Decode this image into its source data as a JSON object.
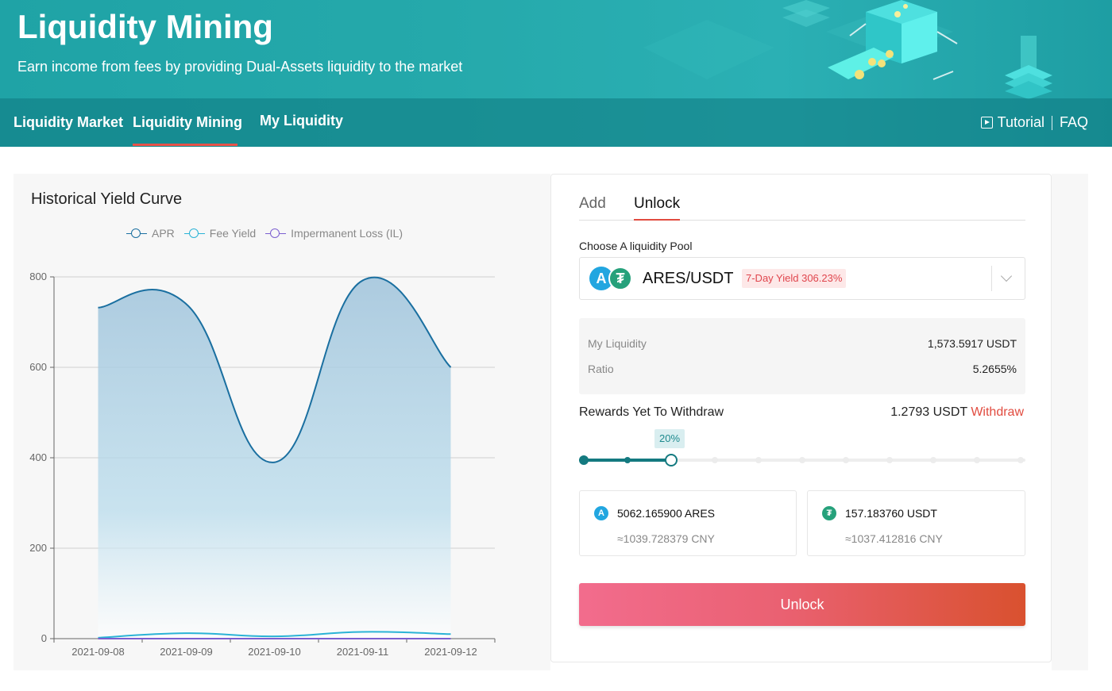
{
  "banner": {
    "title": "Liquidity Mining",
    "subtitle": "Earn income from fees by providing Dual-Assets liquidity to the market"
  },
  "nav": {
    "items": [
      {
        "label": "Liquidity Market",
        "active": false
      },
      {
        "label": "Liquidity Mining",
        "active": true
      },
      {
        "label": "My Liquidity",
        "active": false
      }
    ],
    "tutorial_label": "Tutorial",
    "faq_label": "FAQ",
    "tutorial_icon": "play-video-icon"
  },
  "chart": {
    "title": "Historical Yield Curve",
    "legend": [
      "APR",
      "Fee Yield",
      "Impermanent Loss (IL)"
    ]
  },
  "chart_data": {
    "type": "line",
    "title": "Historical Yield Curve",
    "x": [
      "2021-09-08",
      "2021-09-09",
      "2021-09-10",
      "2021-09-11",
      "2021-09-12"
    ],
    "ylim": [
      0,
      800
    ],
    "yticks": [
      0,
      200,
      400,
      600,
      800
    ],
    "grid": true,
    "legend_position": "top",
    "series": [
      {
        "name": "APR",
        "color": "#1a6fa0",
        "area": true,
        "values": [
          732,
          740,
          390,
          792,
          600
        ]
      },
      {
        "name": "Fee Yield",
        "color": "#2bb3d6",
        "area": false,
        "values": [
          2,
          12,
          5,
          15,
          10
        ]
      },
      {
        "name": "Impermanent Loss (IL)",
        "color": "#7b5fd0",
        "area": false,
        "values": [
          0,
          0,
          0,
          0,
          0
        ]
      }
    ]
  },
  "panel": {
    "tabs": [
      "Add",
      "Unlock"
    ],
    "active_tab": "Unlock",
    "pool_label": "Choose A liquidity Pool",
    "pool": {
      "name": "ARES/USDT",
      "yield_badge": "7-Day Yield 306.23%",
      "icon_a": "ares-coin-icon",
      "icon_b": "usdt-coin-icon",
      "icon_a_glyph": "A",
      "icon_b_glyph": "₮"
    },
    "my_liquidity_label": "My Liquidity",
    "my_liquidity_value": "1,573.5917 USDT",
    "ratio_label": "Ratio",
    "ratio_value": "5.2655%",
    "rewards_label": "Rewards Yet To Withdraw",
    "rewards_value": "1.2793 USDT",
    "withdraw_label": "Withdraw",
    "slider": {
      "value_label": "20%",
      "fraction": 0.2
    },
    "assets": [
      {
        "icon": "ares-coin-icon",
        "glyph": "A",
        "color": "#22a6e0",
        "amount": "5062.165900 ARES",
        "cny": "≈1039.728379 CNY"
      },
      {
        "icon": "usdt-coin-icon",
        "glyph": "₮",
        "color": "#26a17b",
        "amount": "157.183760 USDT",
        "cny": "≈1037.412816 CNY"
      }
    ],
    "unlock_button": "Unlock",
    "colors": {
      "accent": "#147a80",
      "danger": "#e14b3f"
    }
  }
}
